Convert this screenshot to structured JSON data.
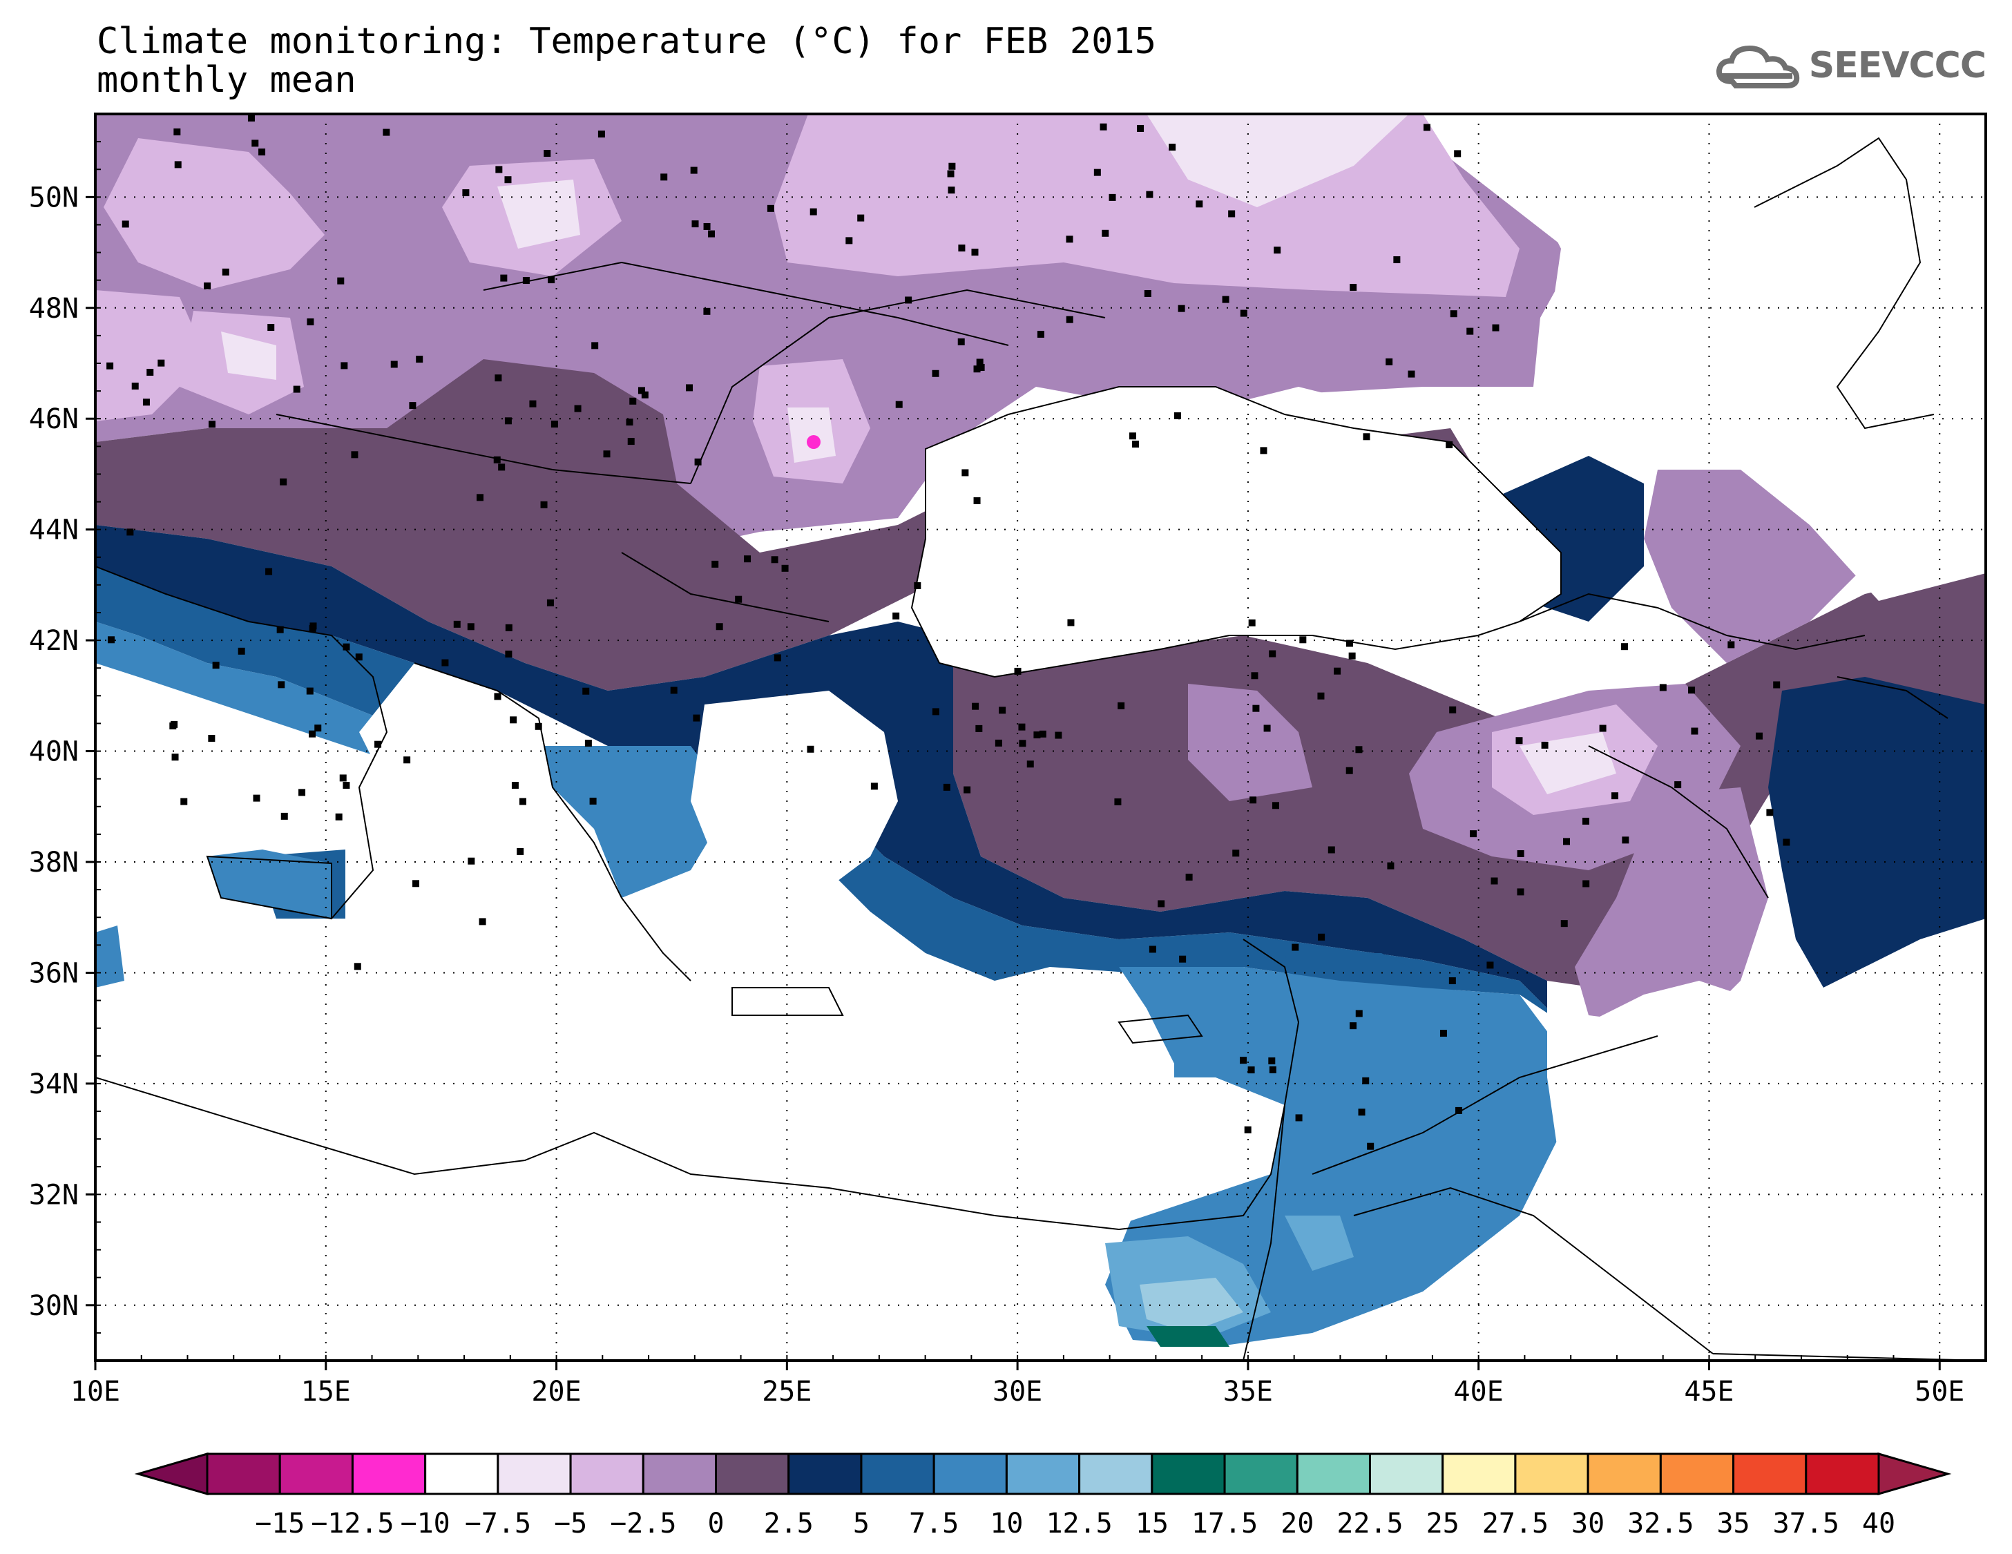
{
  "header": {
    "title_line1": "Climate monitoring: Temperature (°C) for FEB 2015",
    "title_line2": "monthly mean",
    "logo_text": "SEEVCCC"
  },
  "map": {
    "lon_range": [
      10,
      51
    ],
    "lat_range": [
      29,
      51.5
    ],
    "lon_ticks": [
      "10E",
      "15E",
      "20E",
      "25E",
      "30E",
      "35E",
      "40E",
      "45E",
      "50E"
    ],
    "lat_ticks": [
      "30N",
      "32N",
      "34N",
      "36N",
      "38N",
      "40N",
      "42N",
      "44N",
      "46N",
      "48N",
      "50N"
    ],
    "gridlines": "dotted"
  },
  "colorbar": {
    "labels": [
      "-15",
      "-12.5",
      "-10",
      "-7.5",
      "-5",
      "-2.5",
      "0",
      "2.5",
      "5",
      "7.5",
      "10",
      "12.5",
      "15",
      "17.5",
      "20",
      "22.5",
      "25",
      "27.5",
      "30",
      "32.5",
      "35",
      "37.5",
      "40"
    ],
    "colors": [
      "#7a0a4f",
      "#9c1065",
      "#c81a8f",
      "#ff2ad0",
      "#ffffff",
      "#f0e4f4",
      "#d9b6e2",
      "#a885b9",
      "#6a4d6e",
      "#0a2f63",
      "#1c5f99",
      "#3b86bf",
      "#64a9d4",
      "#9ccbe1",
      "#006b5b",
      "#2b9a86",
      "#7ccfbd",
      "#c6e9e0",
      "#fff6b9",
      "#fed77a",
      "#fcae4f",
      "#fa8a3b",
      "#f04a2a",
      "#cf1525",
      "#9c1f46"
    ]
  }
}
